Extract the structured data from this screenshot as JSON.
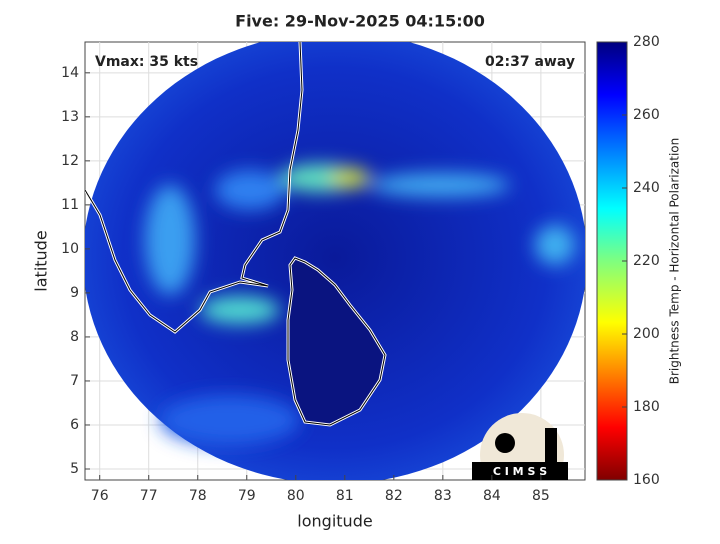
{
  "title": "Five: 29-Nov-2025 04:15:00",
  "annotations": {
    "left": "Vmax: 35 kts",
    "right": "02:37 away"
  },
  "axes": {
    "xlabel": "longitude",
    "ylabel": "latitude",
    "xlim": [
      75.7,
      85.9
    ],
    "xticks": [
      76,
      77,
      78,
      79,
      80,
      81,
      82,
      83,
      84,
      85
    ],
    "ylim": [
      4.75,
      14.7
    ],
    "yticks": [
      5,
      6,
      7,
      8,
      9,
      10,
      11,
      12,
      13,
      14
    ],
    "grid": true
  },
  "colorbar": {
    "label": "Brightness Temp - Horizontal Polarization",
    "lim": [
      160,
      280
    ],
    "ticks": [
      160,
      180,
      200,
      220,
      240,
      260,
      280
    ]
  },
  "logo": "C I M S S"
}
